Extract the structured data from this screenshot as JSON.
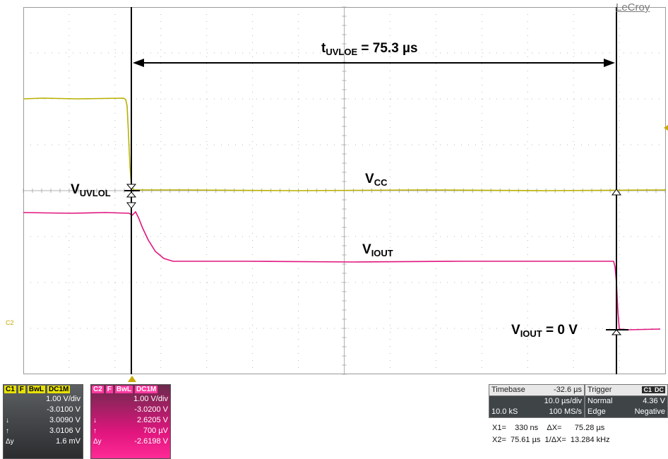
{
  "brand": "LeCroy",
  "annotations": {
    "t_uvloe_main": "t",
    "t_uvloe_sub": "UVLOE",
    "t_uvloe_value": " = 75.3 µs",
    "vuvlol_main": "V",
    "vuvlol_sub": "UVLOL",
    "vcc_main": "V",
    "vcc_sub": "CC",
    "viout_main": "V",
    "viout_sub": "IOUT",
    "viout0_main": "V",
    "viout0_sub": "IOUT",
    "viout0_value": " = 0 V"
  },
  "c2_marker": "C2",
  "colors": {
    "c1": "#b7b000",
    "c2": "#e0157e",
    "grid": "#b8b8b8",
    "cursor": "#000000",
    "trigger": "#c8a800"
  },
  "channel1": {
    "tags": [
      "C1",
      "F",
      "BwL",
      "DC1M"
    ],
    "vdiv": "1.00 V/div",
    "offset": "-3.0100 V",
    "cursor_down_symbol": "↓",
    "cursor_down": "3.0090 V",
    "cursor_up_symbol": "↑",
    "cursor_up": "3.0106 V",
    "delta_symbol": "Δy",
    "delta": "1.6 mV"
  },
  "channel2": {
    "tags": [
      "C2",
      "F",
      "BwL",
      "DC1M"
    ],
    "vdiv": "1.00 V/div",
    "offset": "-3.0200 V",
    "cursor_down_symbol": "↓",
    "cursor_down": "2.6205 V",
    "cursor_up_symbol": "↑",
    "cursor_up": "700 µV",
    "delta_symbol": "Δy",
    "delta": "-2.6198 V"
  },
  "timebase": {
    "label": "Timebase",
    "delay": "-32.6 µs",
    "tdiv": "10.0 µs/div",
    "samples": "10.0 kS",
    "rate": "100 MS/s"
  },
  "trigger": {
    "label": "Trigger",
    "tag1": "C1",
    "tag2": "DC",
    "mode": "Normal",
    "level": "4.36 V",
    "type": "Edge",
    "slope": "Negative"
  },
  "measurements": {
    "line1": "X1=    330 ns    ΔX=      75.28 µs",
    "line2": "X2=  75.61 µs  1/ΔX=  13.284 kHz"
  }
}
